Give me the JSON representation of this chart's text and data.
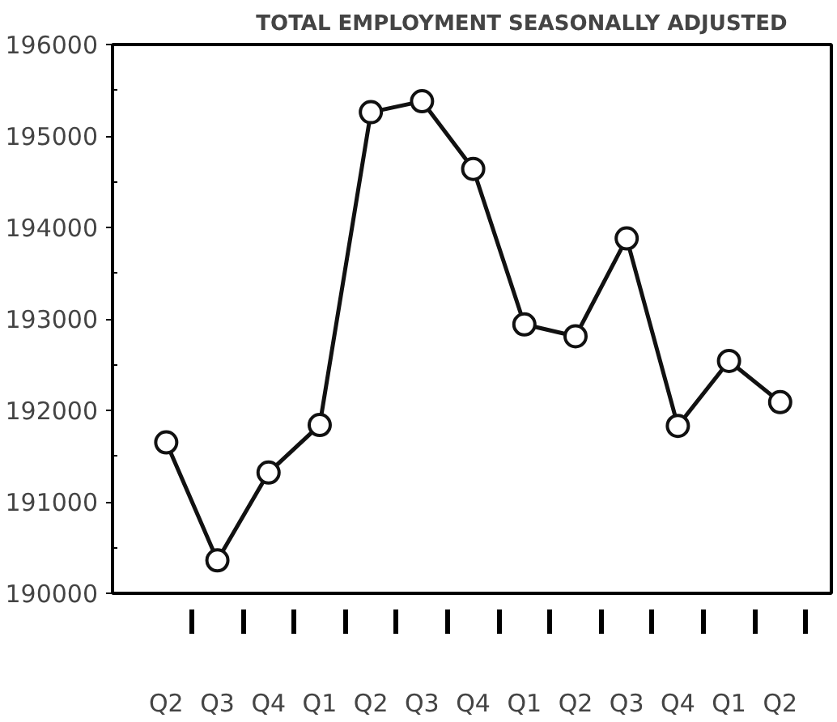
{
  "chart_data": {
    "type": "line",
    "title": "TOTAL   EMPLOYMENT   SEASONALLY   ADJUSTED",
    "categories": [
      "Q2",
      "Q3",
      "Q4",
      "Q1",
      "Q2",
      "Q3",
      "Q4",
      "Q1",
      "Q2",
      "Q3",
      "Q4",
      "Q1",
      "Q2"
    ],
    "series": [
      {
        "color": "#111111",
        "values": [
          191650,
          190360,
          191320,
          191840,
          195260,
          195380,
          194640,
          192940,
          192810,
          193880,
          191830,
          192540,
          192090
        ]
      }
    ],
    "ylim": [
      190000,
      196000
    ],
    "yticks": [
      190000,
      191000,
      192000,
      193000,
      194000,
      195000,
      196000
    ],
    "marker": "circle",
    "line_style": "solid",
    "grid": false
  }
}
